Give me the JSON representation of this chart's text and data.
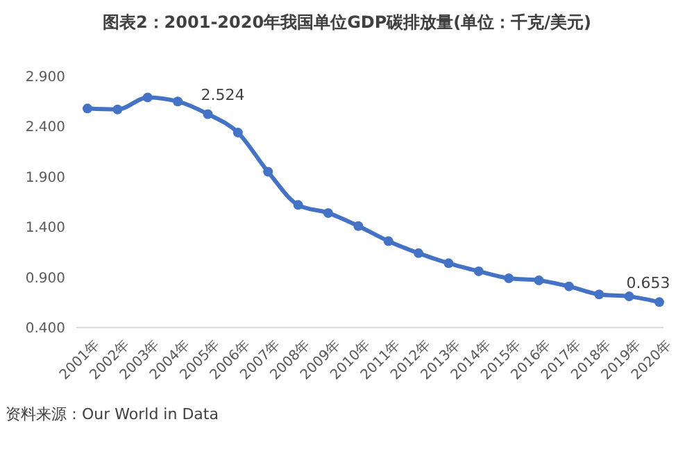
{
  "chart_data": {
    "type": "line",
    "title": "图表2：2001-2020年我国单位GDP碳排放量(单位：千克/美元)",
    "categories": [
      "2001年",
      "2002年",
      "2003年",
      "2004年",
      "2005年",
      "2006年",
      "2007年",
      "2008年",
      "2009年",
      "2010年",
      "2011年",
      "2012年",
      "2013年",
      "2014年",
      "2015年",
      "2016年",
      "2017年",
      "2018年",
      "2019年",
      "2020年"
    ],
    "series": [
      {
        "color": "#4472c4",
        "values": [
          2.58,
          2.57,
          2.69,
          2.65,
          2.524,
          2.34,
          1.95,
          1.62,
          1.54,
          1.41,
          1.26,
          1.14,
          1.04,
          0.96,
          0.89,
          0.87,
          0.81,
          0.73,
          0.71,
          0.653
        ],
        "value_labels": [
          null,
          null,
          null,
          null,
          "2.524",
          null,
          null,
          null,
          null,
          null,
          null,
          null,
          null,
          null,
          null,
          null,
          null,
          null,
          null,
          "0.653"
        ]
      }
    ],
    "ylim": [
      0.4,
      2.9
    ],
    "yticks": [
      {
        "value": 0.4,
        "label": "0.400"
      },
      {
        "value": 0.9,
        "label": "0.900"
      },
      {
        "value": 1.4,
        "label": "1.400"
      },
      {
        "value": 1.9,
        "label": "1.900"
      },
      {
        "value": 2.4,
        "label": "2.400"
      },
      {
        "value": 2.9,
        "label": "2.900"
      }
    ],
    "grid": false,
    "marker": "circle",
    "line_style": "solid",
    "annotations": [
      "资料来源：Our World in Data"
    ]
  }
}
